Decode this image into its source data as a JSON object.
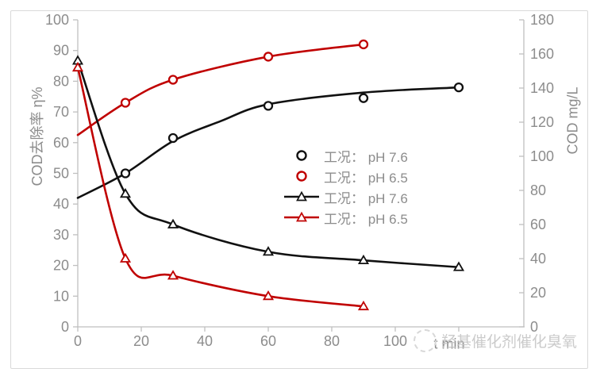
{
  "window": {
    "background": "#FFFFFF",
    "frame_border_color": "#D9D9D9"
  },
  "colors": {
    "axis_line": "#BFBFBF",
    "tick_label": "#8C8C8C",
    "legend_text": "#8C8C8C",
    "series_black": "#111111",
    "series_red": "#C00000",
    "watermark": "#C6C6C6",
    "marker_fill": "#FFFFFF"
  },
  "chart_data": {
    "type": "line",
    "title": "",
    "grid": false,
    "legend_position": "center-right",
    "x_axis": {
      "label": "t min",
      "min": 0,
      "max": 140,
      "tick_step": 20,
      "tick_max": 120,
      "label_max": 100
    },
    "y_left_axis": {
      "label": "COD去除率 η%",
      "min": 0,
      "max": 100,
      "tick_step": 10
    },
    "y_right_axis": {
      "label": "COD mg/L",
      "min": 0,
      "max": 180,
      "tick_step": 20
    },
    "series": [
      {
        "name": "工况： pH 7.6",
        "axis": "left",
        "marker": "circle",
        "color": "#111111",
        "line": "trend-only",
        "points": [
          [
            15,
            50
          ],
          [
            30,
            61.5
          ],
          [
            60,
            72
          ],
          [
            90,
            74.5
          ],
          [
            120,
            78
          ]
        ],
        "trend_curve": [
          [
            0,
            42
          ],
          [
            15,
            50
          ],
          [
            30,
            60.5
          ],
          [
            45,
            67
          ],
          [
            60,
            72.5
          ],
          [
            90,
            76.3
          ],
          [
            120,
            78
          ]
        ]
      },
      {
        "name": "工况： pH 6.5",
        "axis": "left",
        "marker": "circle",
        "color": "#C00000",
        "line": "trend-only",
        "points": [
          [
            15,
            73
          ],
          [
            30,
            80.5
          ],
          [
            60,
            88
          ],
          [
            90,
            92
          ]
        ],
        "trend_curve": [
          [
            0,
            62.5
          ],
          [
            15,
            73
          ],
          [
            30,
            80.5
          ],
          [
            60,
            88
          ],
          [
            90,
            92
          ]
        ]
      },
      {
        "name": "工况： pH 7.6",
        "axis": "right",
        "marker": "triangle",
        "color": "#111111",
        "line": "through-points",
        "points": [
          [
            0,
            156
          ],
          [
            15,
            78
          ],
          [
            30,
            60
          ],
          [
            60,
            44
          ],
          [
            90,
            39
          ],
          [
            120,
            35
          ]
        ]
      },
      {
        "name": "工况： pH 6.5",
        "axis": "right",
        "marker": "triangle",
        "color": "#C00000",
        "line": "through-points",
        "points": [
          [
            0,
            152
          ],
          [
            15,
            40
          ],
          [
            30,
            30
          ],
          [
            60,
            18
          ],
          [
            90,
            12
          ]
        ]
      }
    ]
  },
  "watermark": {
    "logo": "dashed-circle-logo",
    "text": "羟基催化剂催化臭氧"
  }
}
